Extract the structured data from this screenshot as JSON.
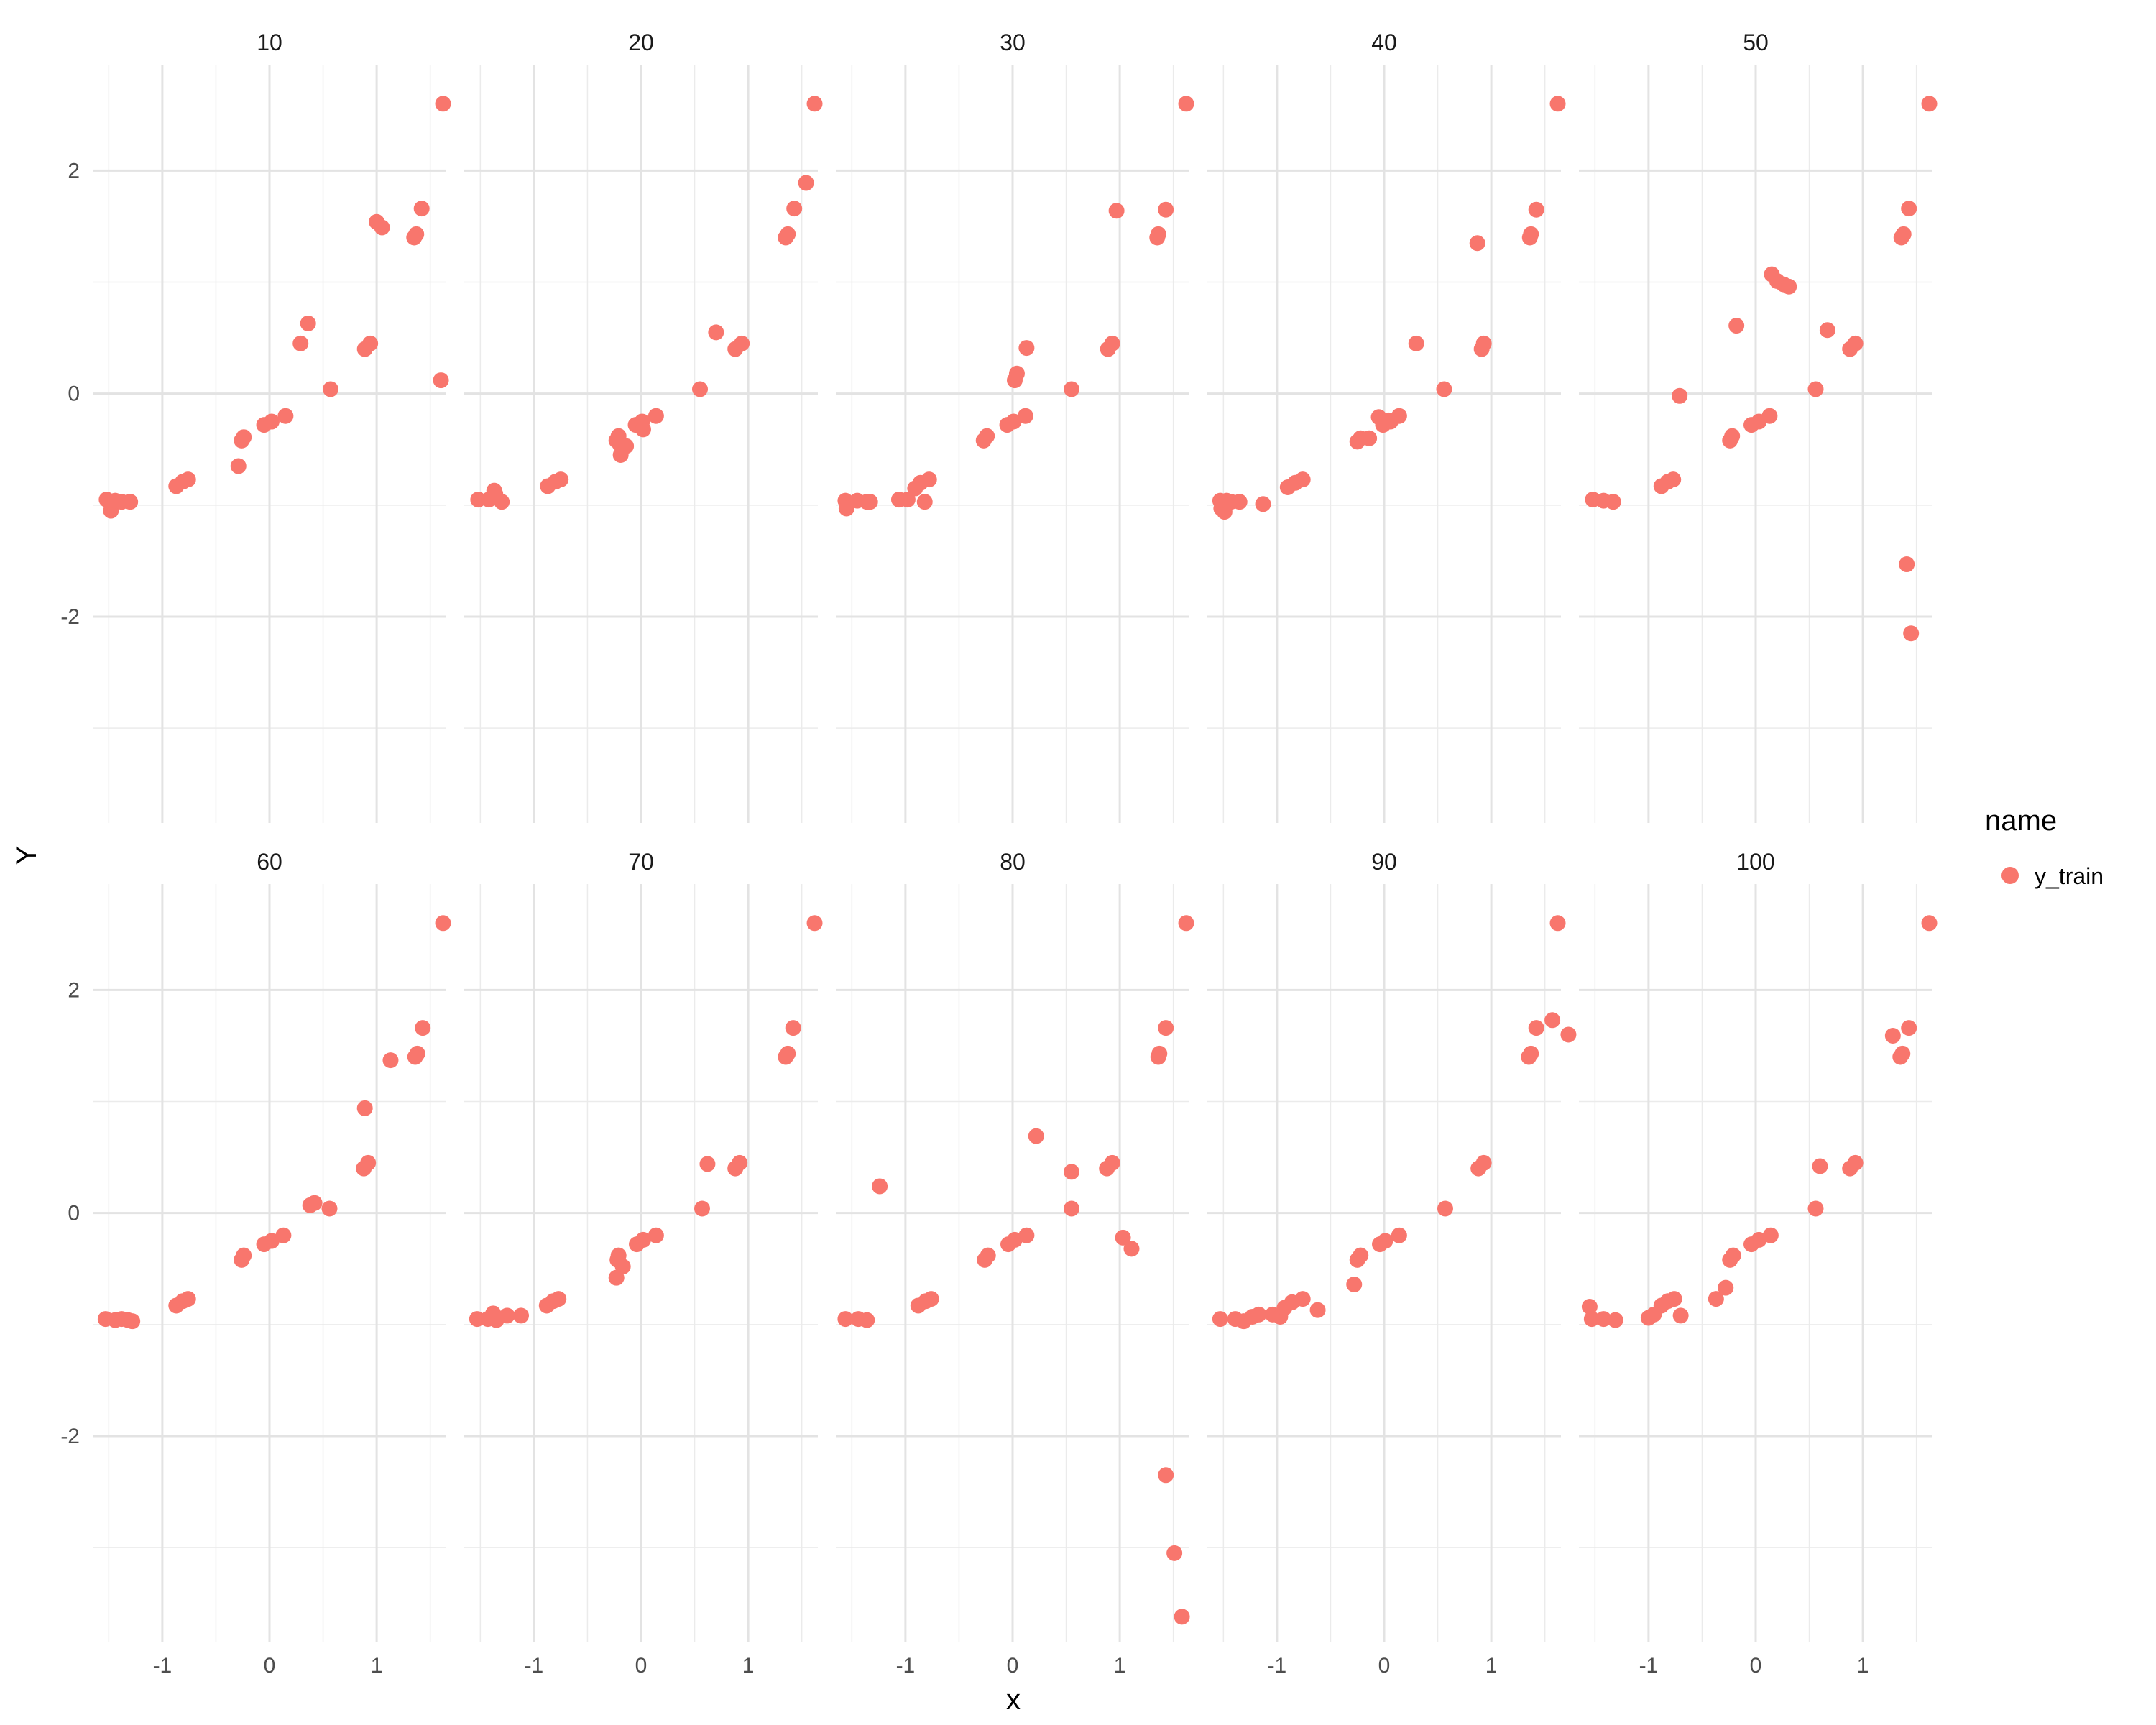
{
  "chart_data": {
    "type": "scatter",
    "facet_by": "",
    "xlabel": "x",
    "ylabel": "Y",
    "xlim": [
      -1.65,
      1.65
    ],
    "ylim": [
      -3.85,
      2.95
    ],
    "x_ticks": [
      -1,
      0,
      1
    ],
    "y_ticks": [
      -2,
      0,
      2
    ],
    "grid": true,
    "legend": {
      "title": "name",
      "entries": [
        "y_train"
      ],
      "position": "right"
    },
    "color": "#F8766D",
    "facets": [
      {
        "label": "10",
        "points": [
          [
            -1.52,
            -0.95
          ],
          [
            -1.48,
            -1.05
          ],
          [
            -1.44,
            -0.96
          ],
          [
            -1.38,
            -0.97
          ],
          [
            -1.3,
            -0.97
          ],
          [
            -0.87,
            -0.83
          ],
          [
            -0.81,
            -0.79
          ],
          [
            -0.76,
            -0.77
          ],
          [
            -0.29,
            -0.65
          ],
          [
            -0.26,
            -0.42
          ],
          [
            -0.24,
            -0.39
          ],
          [
            -0.05,
            -0.28
          ],
          [
            0.02,
            -0.25
          ],
          [
            0.15,
            -0.2
          ],
          [
            0.29,
            0.45
          ],
          [
            0.36,
            0.63
          ],
          [
            0.57,
            0.04
          ],
          [
            0.89,
            0.4
          ],
          [
            0.94,
            0.45
          ],
          [
            1.0,
            1.54
          ],
          [
            1.05,
            1.49
          ],
          [
            1.35,
            1.4
          ],
          [
            1.37,
            1.43
          ],
          [
            1.42,
            1.66
          ],
          [
            1.6,
            0.12
          ],
          [
            1.62,
            2.6
          ]
        ]
      },
      {
        "label": "20",
        "points": [
          [
            -1.52,
            -0.95
          ],
          [
            -1.42,
            -0.95
          ],
          [
            -1.37,
            -0.87
          ],
          [
            -1.36,
            -0.9
          ],
          [
            -1.3,
            -0.97
          ],
          [
            -0.87,
            -0.83
          ],
          [
            -0.8,
            -0.79
          ],
          [
            -0.75,
            -0.77
          ],
          [
            -0.23,
            -0.42
          ],
          [
            -0.21,
            -0.38
          ],
          [
            -0.2,
            -0.45
          ],
          [
            -0.19,
            -0.55
          ],
          [
            -0.14,
            -0.47
          ],
          [
            -0.05,
            -0.28
          ],
          [
            0.01,
            -0.25
          ],
          [
            0.02,
            -0.32
          ],
          [
            0.14,
            -0.2
          ],
          [
            0.55,
            0.04
          ],
          [
            0.7,
            0.55
          ],
          [
            0.88,
            0.4
          ],
          [
            0.94,
            0.45
          ],
          [
            1.35,
            1.4
          ],
          [
            1.37,
            1.43
          ],
          [
            1.43,
            1.66
          ],
          [
            1.54,
            1.89
          ],
          [
            1.62,
            2.6
          ]
        ]
      },
      {
        "label": "30",
        "points": [
          [
            -1.56,
            -0.96
          ],
          [
            -1.55,
            -1.03
          ],
          [
            -1.45,
            -0.96
          ],
          [
            -1.36,
            -0.97
          ],
          [
            -1.33,
            -0.97
          ],
          [
            -1.06,
            -0.95
          ],
          [
            -0.98,
            -0.95
          ],
          [
            -0.91,
            -0.85
          ],
          [
            -0.86,
            -0.8
          ],
          [
            -0.82,
            -0.97
          ],
          [
            -0.78,
            -0.77
          ],
          [
            -0.27,
            -0.42
          ],
          [
            -0.24,
            -0.38
          ],
          [
            -0.05,
            -0.28
          ],
          [
            0.01,
            -0.25
          ],
          [
            0.02,
            0.12
          ],
          [
            0.04,
            0.18
          ],
          [
            0.12,
            -0.2
          ],
          [
            0.13,
            0.41
          ],
          [
            0.55,
            0.04
          ],
          [
            0.89,
            0.4
          ],
          [
            0.93,
            0.45
          ],
          [
            0.97,
            1.64
          ],
          [
            1.35,
            1.4
          ],
          [
            1.36,
            1.43
          ],
          [
            1.43,
            1.65
          ],
          [
            1.62,
            2.6
          ]
        ]
      },
      {
        "label": "40",
        "points": [
          [
            -1.53,
            -0.96
          ],
          [
            -1.52,
            -1.03
          ],
          [
            -1.49,
            -1.06
          ],
          [
            -1.47,
            -0.96
          ],
          [
            -1.43,
            -0.97
          ],
          [
            -1.35,
            -0.97
          ],
          [
            -1.13,
            -0.99
          ],
          [
            -0.9,
            -0.84
          ],
          [
            -0.83,
            -0.8
          ],
          [
            -0.76,
            -0.77
          ],
          [
            -0.25,
            -0.43
          ],
          [
            -0.22,
            -0.4
          ],
          [
            -0.14,
            -0.4
          ],
          [
            -0.05,
            -0.21
          ],
          [
            -0.01,
            -0.28
          ],
          [
            0.04,
            -0.24
          ],
          [
            0.06,
            -0.25
          ],
          [
            0.14,
            -0.2
          ],
          [
            0.3,
            0.45
          ],
          [
            0.56,
            0.04
          ],
          [
            0.87,
            1.35
          ],
          [
            0.91,
            0.4
          ],
          [
            0.93,
            0.45
          ],
          [
            1.36,
            1.4
          ],
          [
            1.37,
            1.43
          ],
          [
            1.42,
            1.65
          ],
          [
            1.62,
            2.6
          ]
        ]
      },
      {
        "label": "50",
        "points": [
          [
            -1.52,
            -0.95
          ],
          [
            -1.42,
            -0.96
          ],
          [
            -1.33,
            -0.97
          ],
          [
            -0.88,
            -0.83
          ],
          [
            -0.82,
            -0.79
          ],
          [
            -0.77,
            -0.77
          ],
          [
            -0.71,
            -0.02
          ],
          [
            -0.24,
            -0.42
          ],
          [
            -0.22,
            -0.38
          ],
          [
            -0.18,
            0.61
          ],
          [
            -0.04,
            -0.28
          ],
          [
            0.03,
            -0.25
          ],
          [
            0.13,
            -0.2
          ],
          [
            0.15,
            1.07
          ],
          [
            0.2,
            1.01
          ],
          [
            0.26,
            0.98
          ],
          [
            0.31,
            0.96
          ],
          [
            0.56,
            0.04
          ],
          [
            0.67,
            0.57
          ],
          [
            0.88,
            0.4
          ],
          [
            0.93,
            0.45
          ],
          [
            1.36,
            1.4
          ],
          [
            1.38,
            1.43
          ],
          [
            1.41,
            -1.53
          ],
          [
            1.43,
            1.66
          ],
          [
            1.45,
            -2.15
          ],
          [
            1.62,
            2.6
          ]
        ]
      },
      {
        "label": "60",
        "points": [
          [
            -1.53,
            -0.95
          ],
          [
            -1.44,
            -0.96
          ],
          [
            -1.38,
            -0.95
          ],
          [
            -1.32,
            -0.96
          ],
          [
            -1.28,
            -0.97
          ],
          [
            -0.87,
            -0.83
          ],
          [
            -0.81,
            -0.79
          ],
          [
            -0.76,
            -0.77
          ],
          [
            -0.26,
            -0.42
          ],
          [
            -0.24,
            -0.38
          ],
          [
            -0.05,
            -0.28
          ],
          [
            0.02,
            -0.25
          ],
          [
            0.13,
            -0.2
          ],
          [
            0.38,
            0.07
          ],
          [
            0.42,
            0.09
          ],
          [
            0.56,
            0.04
          ],
          [
            0.88,
            0.4
          ],
          [
            0.89,
            0.94
          ],
          [
            0.92,
            0.45
          ],
          [
            1.13,
            1.37
          ],
          [
            1.36,
            1.4
          ],
          [
            1.38,
            1.43
          ],
          [
            1.43,
            1.66
          ],
          [
            1.62,
            2.6
          ]
        ]
      },
      {
        "label": "70",
        "points": [
          [
            -1.53,
            -0.95
          ],
          [
            -1.43,
            -0.95
          ],
          [
            -1.38,
            -0.9
          ],
          [
            -1.35,
            -0.96
          ],
          [
            -1.25,
            -0.92
          ],
          [
            -1.12,
            -0.92
          ],
          [
            -0.88,
            -0.83
          ],
          [
            -0.82,
            -0.79
          ],
          [
            -0.77,
            -0.77
          ],
          [
            -0.23,
            -0.58
          ],
          [
            -0.22,
            -0.42
          ],
          [
            -0.21,
            -0.38
          ],
          [
            -0.17,
            -0.48
          ],
          [
            -0.04,
            -0.28
          ],
          [
            0.02,
            -0.24
          ],
          [
            0.14,
            -0.2
          ],
          [
            0.57,
            0.04
          ],
          [
            0.62,
            0.44
          ],
          [
            0.88,
            0.4
          ],
          [
            0.92,
            0.45
          ],
          [
            1.35,
            1.4
          ],
          [
            1.37,
            1.43
          ],
          [
            1.42,
            1.66
          ],
          [
            1.62,
            2.6
          ]
        ]
      },
      {
        "label": "80",
        "points": [
          [
            -1.56,
            -0.95
          ],
          [
            -1.44,
            -0.95
          ],
          [
            -1.36,
            -0.96
          ],
          [
            -1.24,
            0.24
          ],
          [
            -0.88,
            -0.83
          ],
          [
            -0.81,
            -0.79
          ],
          [
            -0.76,
            -0.77
          ],
          [
            -0.26,
            -0.42
          ],
          [
            -0.23,
            -0.38
          ],
          [
            -0.04,
            -0.28
          ],
          [
            0.02,
            -0.24
          ],
          [
            0.13,
            -0.2
          ],
          [
            0.22,
            0.69
          ],
          [
            0.55,
            0.37
          ],
          [
            0.55,
            0.04
          ],
          [
            0.88,
            0.4
          ],
          [
            0.93,
            0.45
          ],
          [
            1.03,
            -0.22
          ],
          [
            1.11,
            -0.32
          ],
          [
            1.36,
            1.4
          ],
          [
            1.37,
            1.43
          ],
          [
            1.43,
            1.66
          ],
          [
            1.43,
            -2.35
          ],
          [
            1.51,
            -3.05
          ],
          [
            1.58,
            -3.62
          ],
          [
            1.62,
            2.6
          ]
        ]
      },
      {
        "label": "90",
        "points": [
          [
            -1.53,
            -0.95
          ],
          [
            -1.39,
            -0.95
          ],
          [
            -1.31,
            -0.97
          ],
          [
            -1.23,
            -0.93
          ],
          [
            -1.17,
            -0.91
          ],
          [
            -1.04,
            -0.91
          ],
          [
            -0.97,
            -0.93
          ],
          [
            -0.93,
            -0.85
          ],
          [
            -0.86,
            -0.8
          ],
          [
            -0.76,
            -0.77
          ],
          [
            -0.62,
            -0.87
          ],
          [
            -0.28,
            -0.64
          ],
          [
            -0.25,
            -0.42
          ],
          [
            -0.22,
            -0.38
          ],
          [
            -0.04,
            -0.28
          ],
          [
            0.01,
            -0.25
          ],
          [
            0.14,
            -0.2
          ],
          [
            0.57,
            0.04
          ],
          [
            0.88,
            0.4
          ],
          [
            0.93,
            0.45
          ],
          [
            1.35,
            1.4
          ],
          [
            1.37,
            1.43
          ],
          [
            1.42,
            1.66
          ],
          [
            1.57,
            1.73
          ],
          [
            1.62,
            2.6
          ],
          [
            1.72,
            1.6
          ]
        ]
      },
      {
        "label": "100",
        "points": [
          [
            -1.55,
            -0.84
          ],
          [
            -1.53,
            -0.95
          ],
          [
            -1.42,
            -0.95
          ],
          [
            -1.31,
            -0.96
          ],
          [
            -1.0,
            -0.94
          ],
          [
            -0.95,
            -0.91
          ],
          [
            -0.88,
            -0.83
          ],
          [
            -0.82,
            -0.79
          ],
          [
            -0.76,
            -0.77
          ],
          [
            -0.7,
            -0.92
          ],
          [
            -0.37,
            -0.77
          ],
          [
            -0.28,
            -0.67
          ],
          [
            -0.24,
            -0.42
          ],
          [
            -0.21,
            -0.38
          ],
          [
            -0.04,
            -0.28
          ],
          [
            0.03,
            -0.24
          ],
          [
            0.14,
            -0.2
          ],
          [
            0.56,
            0.04
          ],
          [
            0.6,
            0.42
          ],
          [
            0.88,
            0.4
          ],
          [
            0.93,
            0.45
          ],
          [
            1.28,
            1.59
          ],
          [
            1.35,
            1.4
          ],
          [
            1.37,
            1.43
          ],
          [
            1.43,
            1.66
          ],
          [
            1.62,
            2.6
          ]
        ]
      }
    ]
  }
}
